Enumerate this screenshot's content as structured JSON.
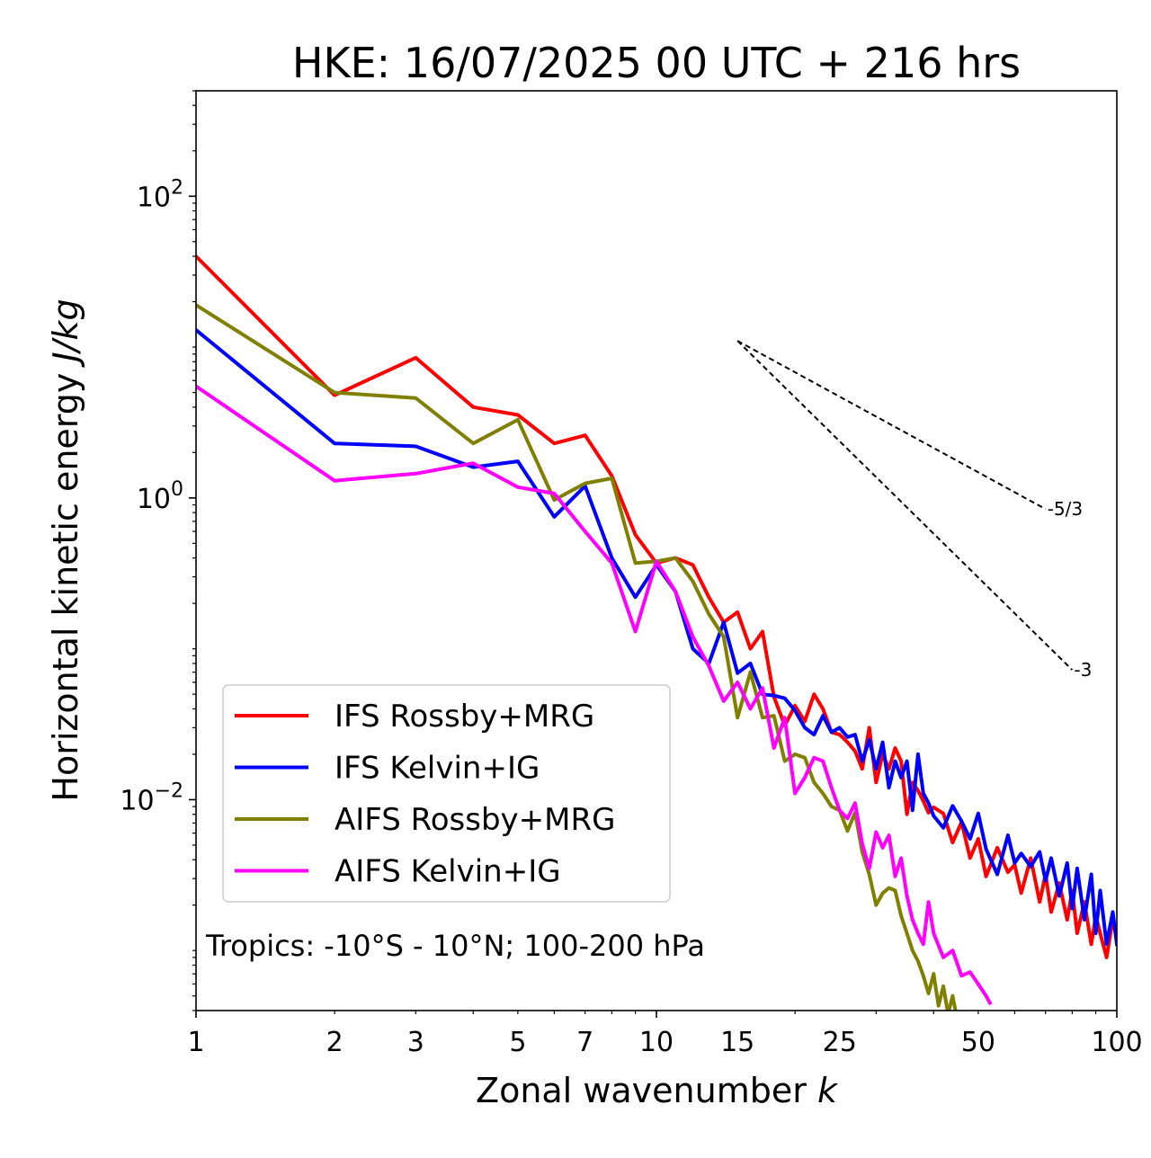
{
  "chart_data": {
    "type": "line",
    "title": "HKE: 16/07/2025 00 UTC + 216 hrs",
    "xlabel": "Zonal wavenumber ",
    "xlabel_italic": "k",
    "ylabel": "Horizontal kinetic energy ",
    "ylabel_italic": "J/kg",
    "xscale": "log",
    "yscale": "log",
    "xlim": [
      1,
      100
    ],
    "ylim": [
      0.0004,
      500
    ],
    "x_ticks": [
      1,
      2,
      3,
      5,
      7,
      10,
      15,
      25,
      50,
      100
    ],
    "x_tick_labels": [
      "1",
      "2",
      "3",
      "5",
      "7",
      "10",
      "15",
      "25",
      "50",
      "100"
    ],
    "y_ticks": [
      {
        "value": 100,
        "base": "10",
        "exp": "2"
      },
      {
        "value": 1,
        "base": "10",
        "exp": "0"
      },
      {
        "value": 0.01,
        "base": "10",
        "exp": "−2"
      }
    ],
    "grid": false,
    "legend_position": "lower-left",
    "annotation": "Tropics: -10°S - 10°N; 100-200 hPa",
    "reference_slopes": [
      {
        "label": "-5/3",
        "slope": -1.6667,
        "x0": 15,
        "x1": 70,
        "y0": 11
      },
      {
        "label": "-3",
        "slope": -3,
        "x0": 15,
        "x1": 80,
        "y0": 11
      }
    ],
    "series": [
      {
        "name": "IFS Rossby+MRG",
        "color": "#ff0000",
        "x": [
          1,
          2,
          3,
          4,
          5,
          6,
          7,
          8,
          9,
          10,
          11,
          12,
          13,
          14,
          15,
          16,
          17,
          18,
          19,
          20,
          21,
          22,
          23,
          24,
          25,
          26,
          27,
          28,
          29,
          30,
          31,
          32,
          33,
          34,
          35,
          36,
          37,
          38,
          39,
          40,
          42,
          44,
          46,
          48,
          50,
          52,
          55,
          58,
          60,
          62,
          65,
          68,
          70,
          72,
          75,
          78,
          80,
          82,
          85,
          88,
          90,
          92,
          95,
          98,
          100
        ],
        "y": [
          40,
          4.8,
          8.5,
          4,
          3.55,
          2.3,
          2.6,
          1.4,
          0.57,
          0.37,
          0.4,
          0.36,
          0.22,
          0.15,
          0.175,
          0.1,
          0.13,
          0.048,
          0.031,
          0.042,
          0.033,
          0.05,
          0.04,
          0.028,
          0.027,
          0.024,
          0.021,
          0.016,
          0.03,
          0.013,
          0.02,
          0.016,
          0.022,
          0.018,
          0.008,
          0.013,
          0.0115,
          0.0098,
          0.0082,
          0.0089,
          0.0081,
          0.0052,
          0.0071,
          0.0041,
          0.0055,
          0.0031,
          0.0048,
          0.0033,
          0.0037,
          0.0024,
          0.0041,
          0.0021,
          0.0032,
          0.0018,
          0.0028,
          0.0016,
          0.0025,
          0.0013,
          0.0021,
          0.0011,
          0.0017,
          0.0013,
          0.0009,
          0.0016,
          0.0012
        ]
      },
      {
        "name": "IFS Kelvin+IG",
        "color": "#0000ff",
        "x": [
          1,
          2,
          3,
          4,
          5,
          6,
          7,
          8,
          9,
          10,
          11,
          12,
          13,
          14,
          15,
          16,
          17,
          18,
          19,
          20,
          21,
          22,
          23,
          24,
          25,
          26,
          27,
          28,
          29,
          30,
          31,
          32,
          33,
          34,
          35,
          36,
          37,
          38,
          39,
          40,
          42,
          44,
          46,
          48,
          50,
          52,
          55,
          58,
          60,
          62,
          65,
          68,
          70,
          72,
          75,
          78,
          80,
          82,
          85,
          88,
          90,
          92,
          95,
          98,
          100
        ],
        "y": [
          13,
          2.3,
          2.2,
          1.6,
          1.75,
          0.75,
          1.2,
          0.4,
          0.22,
          0.36,
          0.24,
          0.1,
          0.08,
          0.15,
          0.069,
          0.08,
          0.05,
          0.049,
          0.047,
          0.039,
          0.03,
          0.027,
          0.036,
          0.028,
          0.03,
          0.026,
          0.027,
          0.018,
          0.025,
          0.016,
          0.024,
          0.012,
          0.018,
          0.014,
          0.018,
          0.0085,
          0.02,
          0.011,
          0.0095,
          0.0078,
          0.0065,
          0.0091,
          0.0072,
          0.0055,
          0.0081,
          0.0047,
          0.0032,
          0.0058,
          0.0038,
          0.0044,
          0.0036,
          0.0045,
          0.0029,
          0.0041,
          0.0023,
          0.0038,
          0.0019,
          0.0035,
          0.0016,
          0.0032,
          0.0013,
          0.0025,
          0.0011,
          0.0018,
          0.0011
        ]
      },
      {
        "name": "AIFS Rossby+MRG",
        "color": "#808000",
        "x": [
          1,
          2,
          3,
          4,
          5,
          6,
          7,
          8,
          9,
          10,
          11,
          12,
          13,
          14,
          15,
          16,
          17,
          18,
          19,
          20,
          21,
          22,
          23,
          24,
          25,
          26,
          27,
          28,
          29,
          30,
          31,
          32,
          33,
          34,
          35,
          36,
          37,
          38,
          39,
          40,
          41,
          42,
          43,
          44,
          45,
          46
        ],
        "y": [
          19,
          5,
          4.6,
          2.3,
          3.3,
          0.97,
          1.25,
          1.35,
          0.37,
          0.38,
          0.4,
          0.28,
          0.17,
          0.12,
          0.035,
          0.07,
          0.035,
          0.036,
          0.018,
          0.02,
          0.019,
          0.013,
          0.011,
          0.009,
          0.0085,
          0.0062,
          0.0082,
          0.0045,
          0.0032,
          0.002,
          0.0024,
          0.0026,
          0.0025,
          0.0017,
          0.0013,
          0.001,
          0.00085,
          0.00068,
          0.00052,
          0.0007,
          0.00043,
          0.00058,
          0.00038,
          0.0005,
          0.00035,
          0.0003
        ]
      },
      {
        "name": "AIFS Kelvin+IG",
        "color": "#ff00ff",
        "x": [
          1,
          2,
          3,
          4,
          5,
          6,
          7,
          8,
          9,
          10,
          11,
          12,
          13,
          14,
          15,
          16,
          17,
          18,
          19,
          20,
          21,
          22,
          23,
          24,
          25,
          26,
          27,
          28,
          29,
          30,
          31,
          32,
          33,
          34,
          35,
          36,
          37,
          38,
          39,
          40,
          42,
          44,
          46,
          48,
          50,
          52,
          53
        ],
        "y": [
          5.5,
          1.3,
          1.45,
          1.7,
          1.18,
          1.07,
          0.6,
          0.37,
          0.13,
          0.38,
          0.24,
          0.12,
          0.077,
          0.045,
          0.06,
          0.04,
          0.055,
          0.022,
          0.035,
          0.011,
          0.014,
          0.019,
          0.018,
          0.012,
          0.0085,
          0.0075,
          0.0095,
          0.0051,
          0.0035,
          0.0061,
          0.0048,
          0.0058,
          0.0031,
          0.0041,
          0.0023,
          0.0016,
          0.0013,
          0.0011,
          0.0021,
          0.0013,
          0.0009,
          0.001,
          0.00068,
          0.00072,
          0.0006,
          0.0005,
          0.00045
        ]
      }
    ]
  }
}
